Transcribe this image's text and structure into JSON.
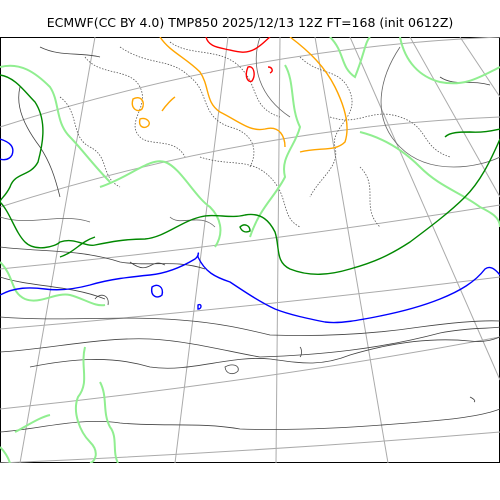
{
  "title": "ECMWF(CC BY 4.0) TMP850 2025/12/13 12Z FT=168 (init 0612Z)",
  "map": {
    "variable": "TMP850",
    "model": "ECMWF",
    "license": "CC BY 4.0",
    "valid_time": "2025/12/13 12Z",
    "forecast_hour": 168,
    "init": "0612Z",
    "colors": {
      "graticule": "#aaaaaa",
      "coastline": "#222222",
      "isotherm_dotted": "#555555",
      "isotherm_minus30": "#00aa00",
      "isotherm_minus6": "#0000ff",
      "isotherm_minus36": "#ffa500",
      "isotherm_minus42": "#ff0000",
      "isotherm_zero": "#90ee90"
    }
  }
}
